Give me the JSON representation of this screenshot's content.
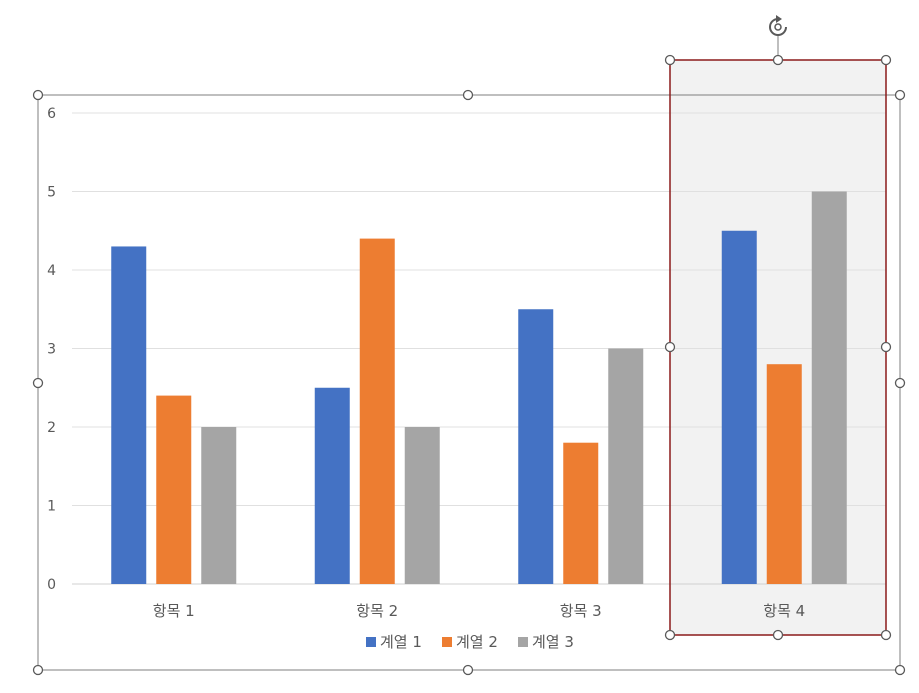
{
  "chart_data": {
    "type": "bar",
    "categories": [
      "항목 1",
      "항목 2",
      "항목 3",
      "항목 4"
    ],
    "series": [
      {
        "name": "계열 1",
        "color": "#4472C4",
        "values": [
          4.3,
          2.5,
          3.5,
          4.5
        ]
      },
      {
        "name": "계열 2",
        "color": "#ED7D31",
        "values": [
          2.4,
          4.4,
          1.8,
          2.8
        ]
      },
      {
        "name": "계열 3",
        "color": "#A5A5A5",
        "values": [
          2,
          2,
          3,
          5
        ]
      }
    ],
    "yticks": [
      "0",
      "1",
      "2",
      "3",
      "4",
      "5",
      "6"
    ],
    "ylim": [
      0,
      6
    ],
    "grid": true,
    "legend_position": "bottom",
    "selected_category": "항목 4"
  },
  "ui": {
    "rotate_handle_icon": "rotate-icon",
    "selection_color": "#8B1A1A",
    "frame_color": "#7F7F7F"
  }
}
